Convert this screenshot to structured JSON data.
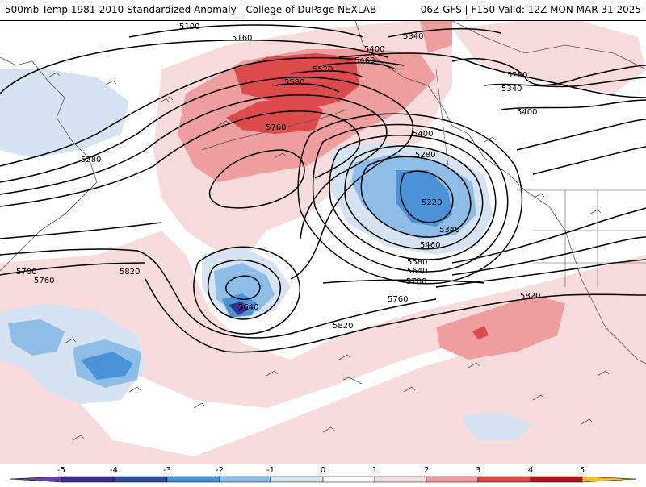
{
  "header": {
    "left_title": "500mb Temp 1981-2010 Standardized Anomaly | College of DuPage NEXLAB",
    "right_title": "06Z GFS | F150 Valid: 12Z MON MAR 31 2025"
  },
  "map": {
    "colors": {
      "anom_neg5": "#3a2f8c",
      "anom_neg4": "#2b4f96",
      "anom_neg3": "#4a93d9",
      "anom_neg2": "#8ebde8",
      "anom_neg1": "#d5e3f2",
      "anom_zero": "#ffffff",
      "anom_pos1": "#f8dcdc",
      "anom_pos2": "#ef9e9e",
      "anom_pos3": "#dd4a4a",
      "anom_pos4": "#b5141b",
      "anom_pos5": "#f0c020",
      "contour": "#000000",
      "coast": "#555555"
    },
    "contour_labels": [
      {
        "id": "c5100",
        "text": "5100"
      },
      {
        "id": "c5160",
        "text": "5160"
      },
      {
        "id": "c5340a",
        "text": "5340"
      },
      {
        "id": "c5400a",
        "text": "5400"
      },
      {
        "id": "c5460a",
        "text": "5460"
      },
      {
        "id": "c5520",
        "text": "5520"
      },
      {
        "id": "c5580a",
        "text": "5580"
      },
      {
        "id": "c5280a",
        "text": "5280"
      },
      {
        "id": "c5340b",
        "text": "5340"
      },
      {
        "id": "c5400b",
        "text": "5400"
      },
      {
        "id": "c5760a",
        "text": "5760"
      },
      {
        "id": "c5400c",
        "text": "5400"
      },
      {
        "id": "c5280b",
        "text": "5280"
      },
      {
        "id": "c5280c",
        "text": "5280"
      },
      {
        "id": "c5220",
        "text": "5220"
      },
      {
        "id": "c5340c",
        "text": "5340"
      },
      {
        "id": "c5460b",
        "text": "5460"
      },
      {
        "id": "c5580b",
        "text": "5580"
      },
      {
        "id": "c5640a",
        "text": "5640"
      },
      {
        "id": "c5700a",
        "text": "5700"
      },
      {
        "id": "c5700b",
        "text": "5700"
      },
      {
        "id": "c5760b",
        "text": "5760"
      },
      {
        "id": "c5820a",
        "text": "5820"
      },
      {
        "id": "c5760c",
        "text": "5760"
      },
      {
        "id": "c5820b",
        "text": "5820"
      },
      {
        "id": "c5820c",
        "text": "5820"
      },
      {
        "id": "c5640b",
        "text": "5640"
      }
    ]
  },
  "legend": {
    "ticks": [
      "-5",
      "-4",
      "-3",
      "-2",
      "-1",
      "0",
      "1",
      "2",
      "3",
      "4",
      "5"
    ]
  }
}
